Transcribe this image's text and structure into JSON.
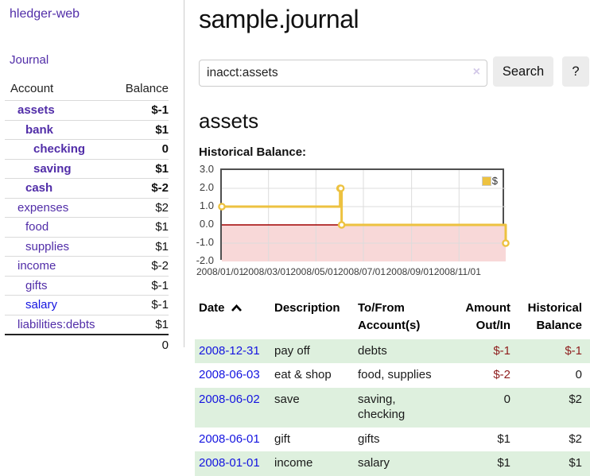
{
  "app_title": "hledger-web",
  "sidebar": {
    "journal_link": "Journal",
    "accounts_table": {
      "headers": {
        "account": "Account",
        "balance": "Balance"
      },
      "rows": [
        {
          "name": "assets",
          "balance": "$-1"
        },
        {
          "name": "bank",
          "balance": "$1"
        },
        {
          "name": "checking",
          "balance": "0"
        },
        {
          "name": "saving",
          "balance": "$1"
        },
        {
          "name": "cash",
          "balance": "$-2"
        },
        {
          "name": "expenses",
          "balance": "$2"
        },
        {
          "name": "food",
          "balance": "$1"
        },
        {
          "name": "supplies",
          "balance": "$1"
        },
        {
          "name": "income",
          "balance": "$-2"
        },
        {
          "name": "gifts",
          "balance": "$-1"
        },
        {
          "name": "salary",
          "balance": "$-1"
        },
        {
          "name": "liabilities:debts",
          "balance": "$1"
        }
      ],
      "total": "0"
    }
  },
  "main": {
    "title": "sample.journal",
    "search": {
      "value": "inacct:assets",
      "clear_icon": "×",
      "search_button": "Search",
      "help_button": "?"
    },
    "account_heading": "assets",
    "chart_title": "Historical Balance:"
  },
  "chart_data": {
    "type": "line",
    "title": "Historical Balance",
    "step": true,
    "series": [
      {
        "name": "$",
        "color": "#edc240",
        "points": [
          [
            "2008-01-01",
            1
          ],
          [
            "2008-06-01",
            2
          ],
          [
            "2008-06-02",
            2
          ],
          [
            "2008-06-03",
            0
          ],
          [
            "2008-12-31",
            -1
          ]
        ]
      }
    ],
    "ylim": [
      -2,
      3
    ],
    "ytick_values": [
      3,
      2,
      1,
      0,
      -1,
      -2
    ],
    "yticks": [
      "3.0",
      "2.0",
      "1.0",
      "0.0",
      "-1.0",
      "-2.0"
    ],
    "x_range": [
      "2008-01-01",
      "2008-12-31"
    ],
    "xticks": [
      {
        "label": "2008/01/01",
        "date": "2008-01-01"
      },
      {
        "label": "2008/03/01",
        "date": "2008-03-01"
      },
      {
        "label": "2008/05/01",
        "date": "2008-05-01"
      },
      {
        "label": "2008/07/01",
        "date": "2008-07-01"
      },
      {
        "label": "2008/09/01",
        "date": "2008-09-01"
      },
      {
        "label": "2008/11/01",
        "date": "2008-11-01"
      }
    ],
    "legend": {
      "label": "$",
      "position": "top-right"
    },
    "grid": true,
    "grid_color": "#dcdcdc",
    "negative_region_fill": "#f8d8d8",
    "zero_line_color": "#a00000"
  },
  "register": {
    "sort": "date ascending",
    "headers": {
      "date": "Date",
      "description": "Description",
      "tofrom_line1": "To/From",
      "tofrom_line2": "Account(s)",
      "amount_line1": "Amount",
      "amount_line2": "Out/In",
      "balance_line1": "Historical",
      "balance_line2": "Balance"
    },
    "rows": [
      {
        "date": "2008-12-31",
        "description": "pay off",
        "accounts": "debts",
        "amount": "$-1",
        "balance": "$-1"
      },
      {
        "date": "2008-06-03",
        "description": "eat & shop",
        "accounts": "food, supplies",
        "amount": "$-2",
        "balance": "0"
      },
      {
        "date": "2008-06-02",
        "description": "save",
        "accounts": "saving,\nchecking",
        "amount": "0",
        "balance": "$2"
      },
      {
        "date": "2008-06-01",
        "description": "gift",
        "accounts": "gifts",
        "amount": "$1",
        "balance": "$2"
      },
      {
        "date": "2008-01-01",
        "description": "income",
        "accounts": "salary",
        "amount": "$1",
        "balance": "$1"
      }
    ]
  },
  "colors": {
    "link_purple": "#512da8",
    "link_blue": "#1414e0",
    "negative_strong": "#8e1d1d",
    "negative_soft": "#bb7f7f",
    "row_stripe_green": "#def0de",
    "chart_line": "#edc240"
  }
}
